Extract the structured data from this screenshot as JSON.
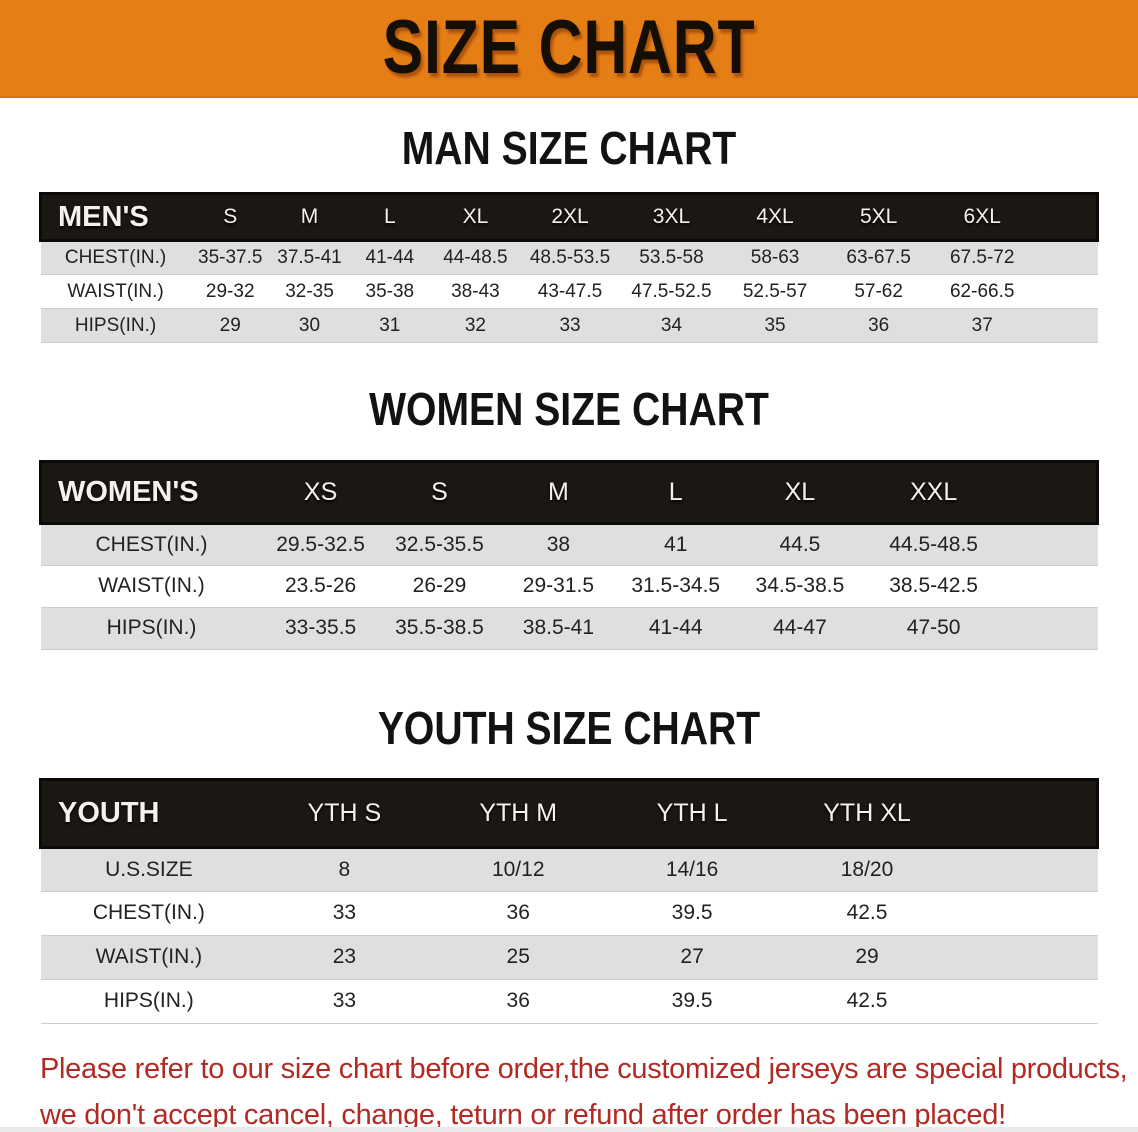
{
  "banner": {
    "title": "SIZE CHART"
  },
  "colors": {
    "banner_bg": "#e67e16",
    "header_band_bg": "#1b1713",
    "row_stripe": "#dfdfdf",
    "note_red": "#b12a23"
  },
  "sections": [
    {
      "heading": "MAN SIZE CHART",
      "group_label": "MEN'S",
      "sizes": [
        "S",
        "M",
        "L",
        "XL",
        "2XL",
        "3XL",
        "4XL",
        "5XL",
        "6XL"
      ],
      "rows": [
        {
          "label": "CHEST(IN.)",
          "values": [
            "35-37.5",
            "37.5-41",
            "41-44",
            "44-48.5",
            "48.5-53.5",
            "53.5-58",
            "58-63",
            "63-67.5",
            "67.5-72"
          ]
        },
        {
          "label": "WAIST(IN.)",
          "values": [
            "29-32",
            "32-35",
            "35-38",
            "38-43",
            "43-47.5",
            "47.5-52.5",
            "52.5-57",
            "57-62",
            "62-66.5"
          ]
        },
        {
          "label": "HIPS(IN.)",
          "values": [
            "29",
            "30",
            "31",
            "32",
            "33",
            "34",
            "35",
            "36",
            "37"
          ]
        }
      ]
    },
    {
      "heading": "WOMEN SIZE CHART",
      "group_label": "WOMEN'S",
      "sizes": [
        "XS",
        "S",
        "M",
        "L",
        "XL",
        "XXL"
      ],
      "rows": [
        {
          "label": "CHEST(IN.)",
          "values": [
            "29.5-32.5",
            "32.5-35.5",
            "38",
            "41",
            "44.5",
            "44.5-48.5"
          ]
        },
        {
          "label": "WAIST(IN.)",
          "values": [
            "23.5-26",
            "26-29",
            "29-31.5",
            "31.5-34.5",
            "34.5-38.5",
            "38.5-42.5"
          ]
        },
        {
          "label": "HIPS(IN.)",
          "values": [
            "33-35.5",
            "35.5-38.5",
            "38.5-41",
            "41-44",
            "44-47",
            "47-50"
          ]
        }
      ]
    },
    {
      "heading": "YOUTH SIZE CHART",
      "group_label": "YOUTH",
      "sizes": [
        "YTH S",
        "YTH M",
        "YTH L",
        "YTH XL"
      ],
      "rows": [
        {
          "label": "U.S.SIZE",
          "values": [
            "8",
            "10/12",
            "14/16",
            "18/20"
          ]
        },
        {
          "label": "CHEST(IN.)",
          "values": [
            "33",
            "36",
            "39.5",
            "42.5"
          ]
        },
        {
          "label": "WAIST(IN.)",
          "values": [
            "23",
            "25",
            "27",
            "29"
          ]
        },
        {
          "label": "HIPS(IN.)",
          "values": [
            "33",
            "36",
            "39.5",
            "42.5"
          ]
        }
      ]
    }
  ],
  "note": {
    "line1": "Please refer to our size chart before order,the customized jerseys are special products,",
    "line2": "we don't accept cancel, change, teturn or refund after order has been placed!"
  }
}
